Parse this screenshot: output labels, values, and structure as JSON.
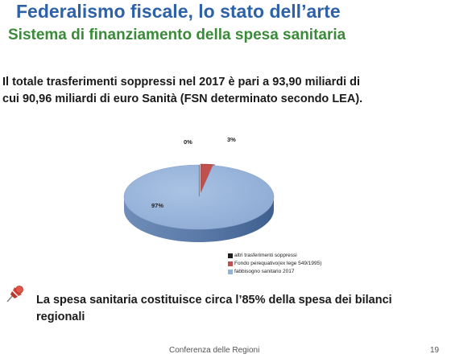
{
  "slide": {
    "title": "Federalismo fiscale, lo stato dell’arte",
    "subtitle": "Sistema di finanziamento della spesa sanitaria",
    "intro_line1": "Il totale trasferimenti soppressi nel 2017 è pari a 93,90 miliardi di",
    "intro_line2": "cui 90,96 miliardi di euro Sanità (FSN determinato secondo LEA).",
    "bullet_line1": "La spesa sanitaria costituisce circa l’85% della spesa dei bilanci",
    "bullet_line2": "regionali",
    "footer": "Conferenza delle Regioni",
    "page_number": "19",
    "bullet_icon": "pushpin-icon"
  },
  "chart_data": {
    "type": "pie",
    "labels": [
      "altri trasferimenti soppressi",
      "Fondo perequativo(ex lege 549/1995)",
      "fabbisogno sanitario 2017"
    ],
    "values": [
      0,
      3,
      97
    ],
    "display_labels": [
      "0%",
      "3%",
      "97%"
    ],
    "colors": [
      "#1f1f1f",
      "#c0504d",
      "#95b3d7"
    ],
    "legend_position": "bottom-right"
  }
}
